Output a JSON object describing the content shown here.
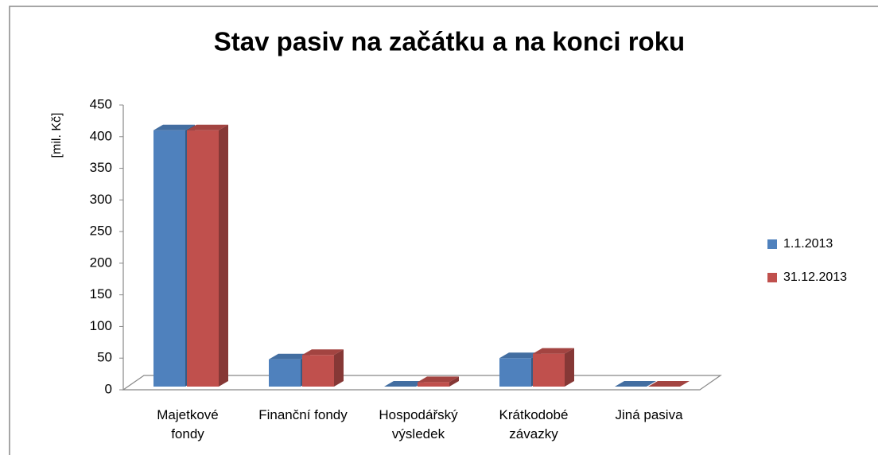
{
  "chart_data": {
    "type": "bar3d",
    "title": "Stav pasiv na začátku a na konci roku",
    "y_label": "[mil. Kč]",
    "categories": [
      "Majetkové fondy",
      "Finanční fondy",
      "Hospodářský výsledek",
      "Krátkodobé závazky",
      "Jiná pasiva"
    ],
    "series": [
      {
        "name": "1.1.2013",
        "color": "#4f81bd",
        "values": [
          405,
          43,
          0,
          45,
          0
        ]
      },
      {
        "name": "31.12.2013",
        "color": "#c0504d",
        "values": [
          405,
          50,
          7,
          52,
          0
        ]
      }
    ],
    "ylim": [
      0,
      450
    ],
    "yticks": [
      0,
      50,
      100,
      150,
      200,
      250,
      300,
      350,
      400,
      450
    ],
    "legend": "right"
  }
}
